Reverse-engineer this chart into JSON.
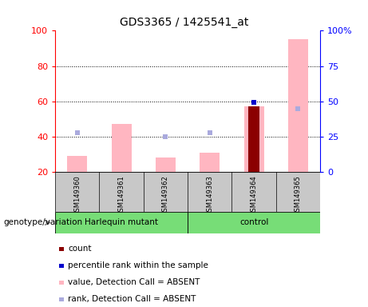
{
  "title": "GDS3365 / 1425541_at",
  "samples": [
    "GSM149360",
    "GSM149361",
    "GSM149362",
    "GSM149363",
    "GSM149364",
    "GSM149365"
  ],
  "left_ylim": [
    20,
    100
  ],
  "left_yticks": [
    20,
    40,
    60,
    80,
    100
  ],
  "right_ylim": [
    0,
    100
  ],
  "right_yticks": [
    0,
    25,
    50,
    75,
    100
  ],
  "right_yticklabels": [
    "0",
    "25",
    "50",
    "75",
    "100%"
  ],
  "value_absent_color": "#FFB6C1",
  "rank_absent_color": "#AAAADD",
  "count_color": "#8B0000",
  "percentile_color": "#0000CC",
  "value_absent": [
    29,
    47,
    28,
    31,
    57,
    95
  ],
  "rank_absent_left": [
    42,
    0,
    40,
    42,
    0,
    56
  ],
  "count_present": [
    0,
    0,
    0,
    0,
    57,
    0
  ],
  "percentile_present_right": [
    0,
    0,
    0,
    0,
    49,
    0
  ],
  "bar_bottom": 20,
  "sample_area_color": "#C8C8C8",
  "green_color": "#77DD77",
  "harlequin_samples": [
    0,
    1,
    2
  ],
  "control_samples": [
    3,
    4,
    5
  ]
}
